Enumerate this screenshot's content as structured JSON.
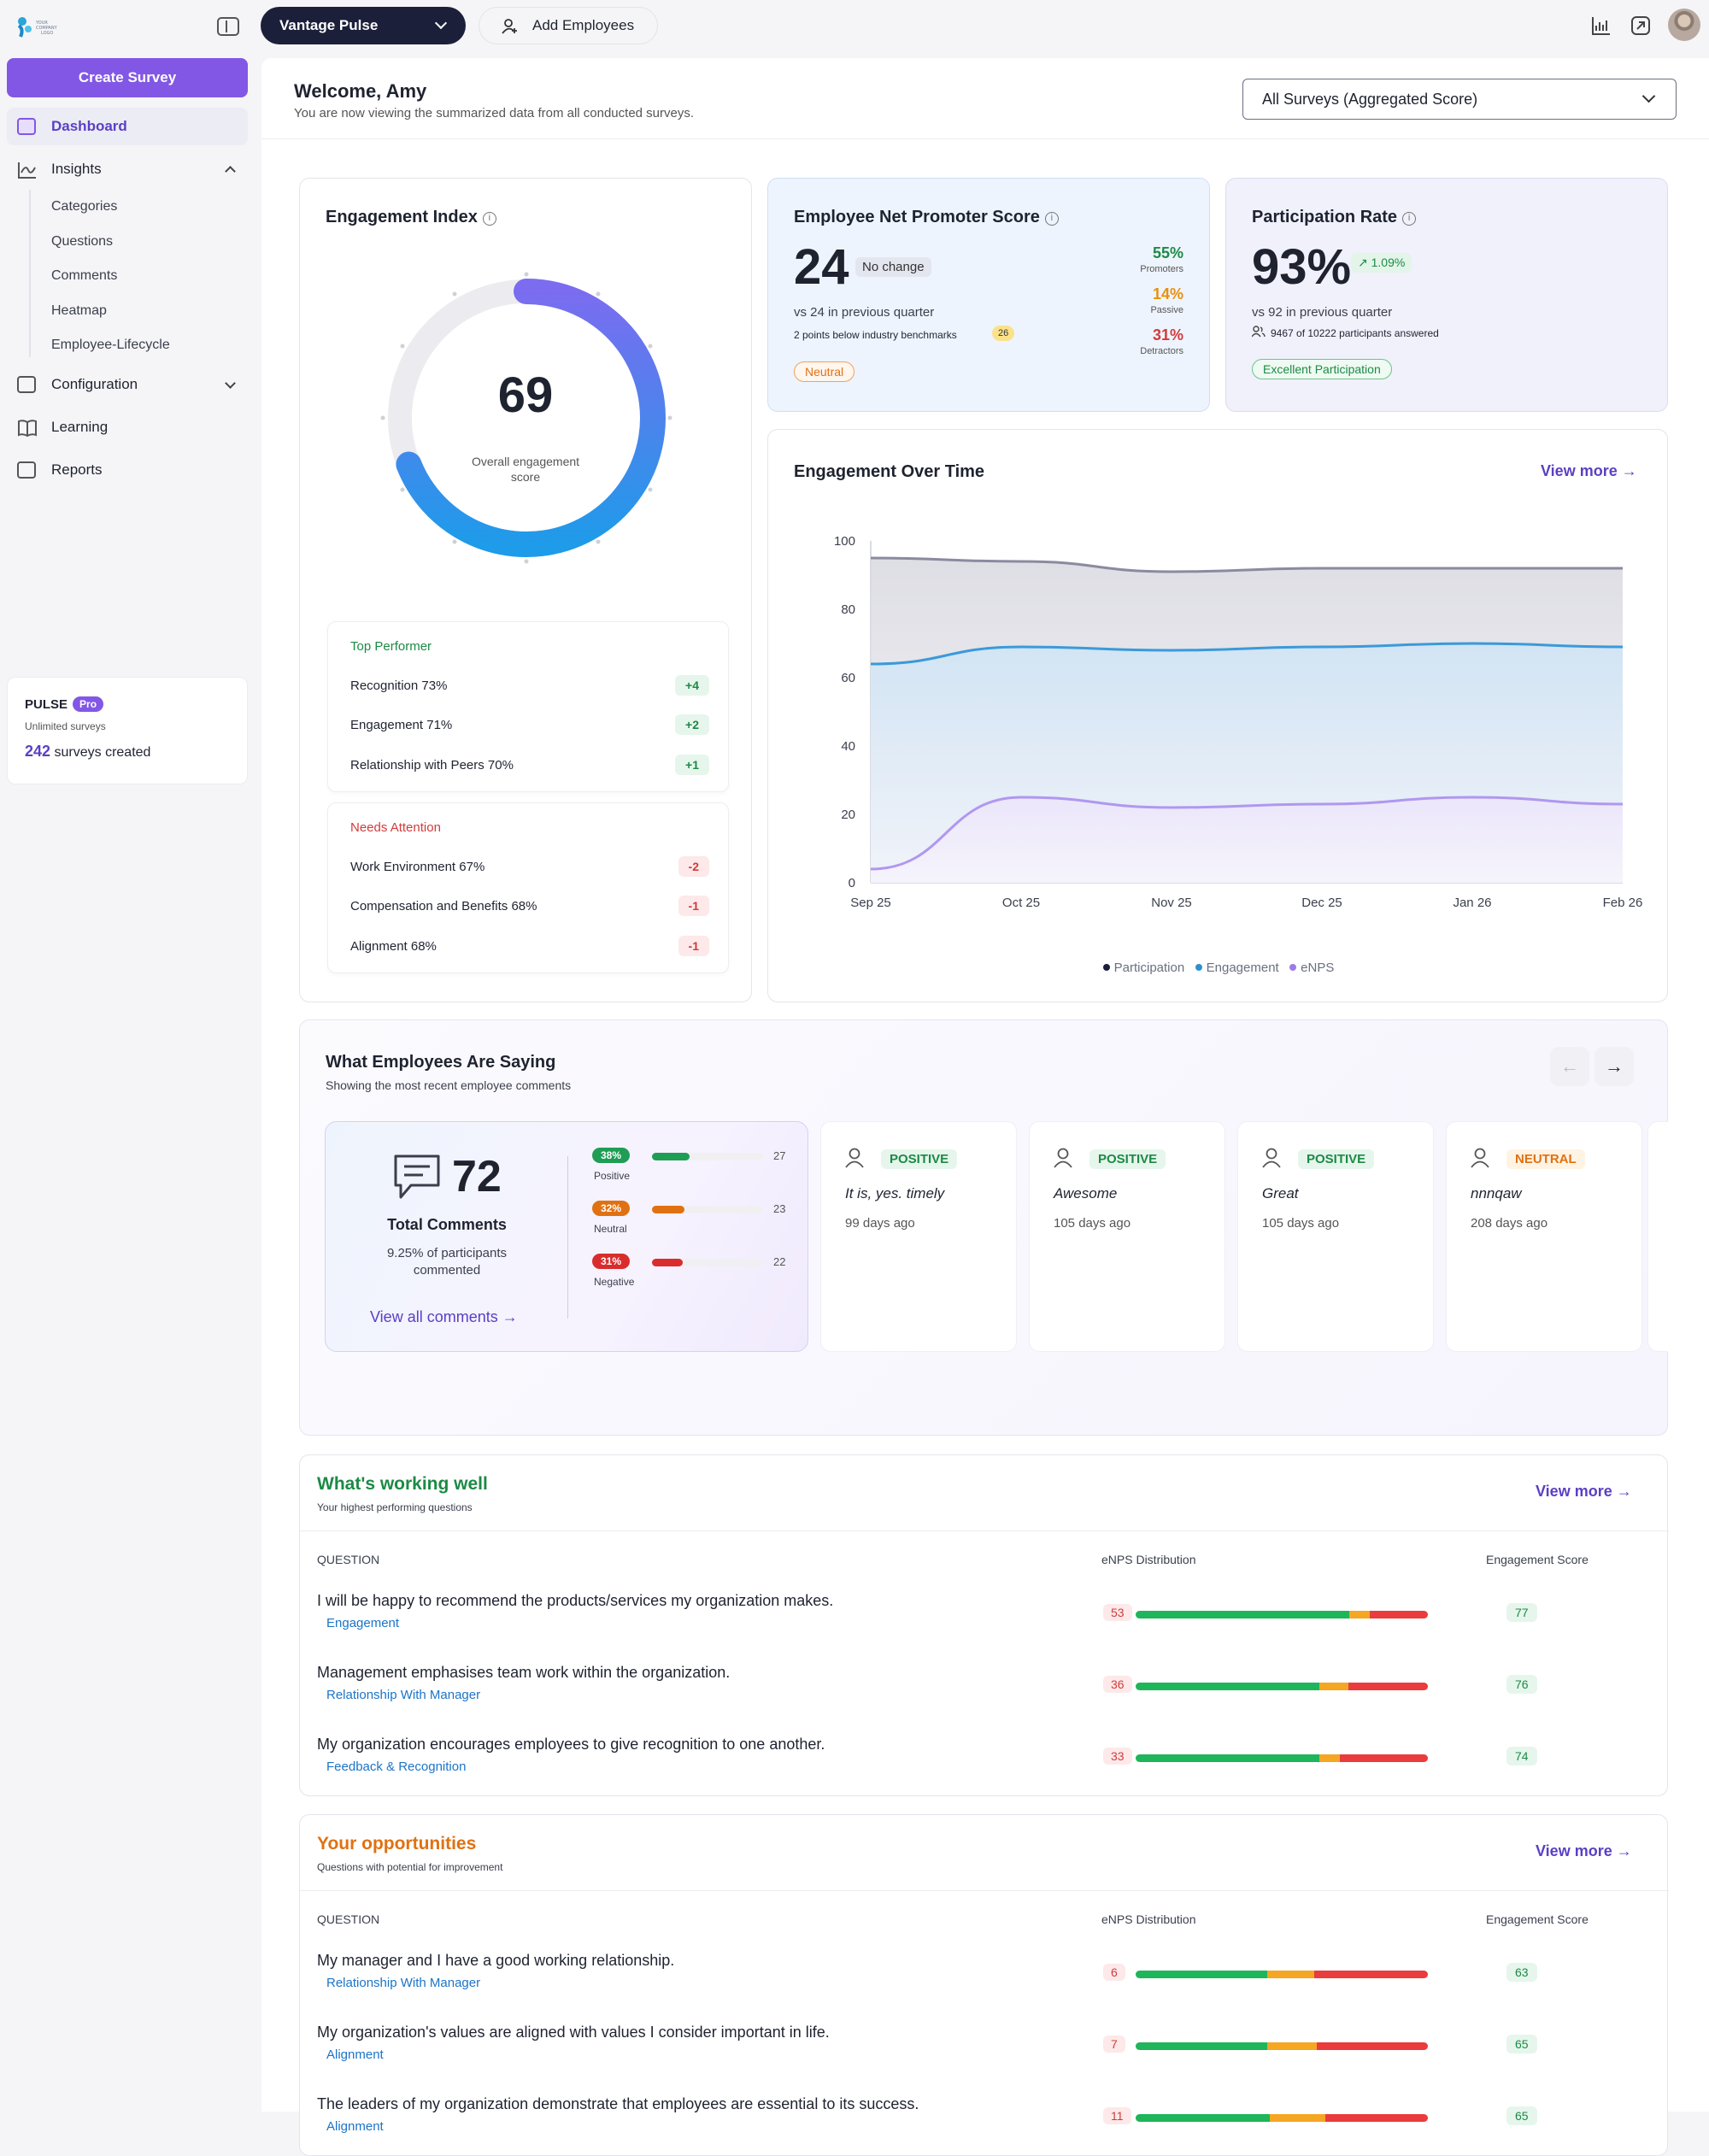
{
  "app": {
    "logo_text": "YOUR COMPANY LOGO",
    "create_survey": "Create Survey",
    "nav": {
      "dashboard": "Dashboard",
      "insights": "Insights",
      "insights_sub": [
        "Categories",
        "Questions",
        "Comments",
        "Heatmap",
        "Employee-Lifecycle"
      ],
      "configuration": "Configuration",
      "learning": "Learning",
      "reports": "Reports"
    },
    "pulse": {
      "name": "PULSE",
      "badge": "Pro",
      "plan": "Unlimited surveys",
      "count": "242",
      "count_label": "surveys created"
    }
  },
  "topbar": {
    "survey": "Vantage Pulse",
    "add_employees": "Add Employees"
  },
  "header": {
    "welcome": "Welcome, Amy",
    "subtitle": "You are now viewing the summarized data from all conducted surveys.",
    "survey_filter": "All Surveys (Aggregated Score)"
  },
  "engagement_index": {
    "title": "Engagement Index",
    "score": "69",
    "score_value": 69,
    "caption_1": "Overall engagement",
    "caption_2": "score",
    "top_performer": {
      "heading": "Top Performer",
      "items": [
        {
          "label": "Recognition  73%",
          "delta": "+4"
        },
        {
          "label": "Engagement  71%",
          "delta": "+2"
        },
        {
          "label": "Relationship with Peers  70%",
          "delta": "+1"
        }
      ]
    },
    "needs_attention": {
      "heading": "Needs Attention",
      "items": [
        {
          "label": "Work Environment  67%",
          "delta": "-2"
        },
        {
          "label": "Compensation and Benefits  68%",
          "delta": "-1"
        },
        {
          "label": "Alignment  68%",
          "delta": "-1"
        }
      ]
    }
  },
  "enps": {
    "title": "Employee Net Promoter Score",
    "score": "24",
    "change": "No change",
    "previous": "vs 24 in previous quarter",
    "benchmark": "2 points below industry benchmarks",
    "benchmark_value": "26",
    "status": "Neutral",
    "promoters_pct": "55%",
    "promoters_label": "Promoters",
    "passive_pct": "14%",
    "passive_label": "Passive",
    "detractors_pct": "31%",
    "detractors_label": "Detractors"
  },
  "participation": {
    "title": "Participation Rate",
    "rate": "93%",
    "change": "1.09%",
    "previous": "vs 92 in previous quarter",
    "answered": "9467 of 10222 participants answered",
    "status": "Excellent Participation"
  },
  "engagement_over_time": {
    "title": "Engagement Over Time",
    "view_more": "View more"
  },
  "chart_data": {
    "type": "area",
    "x": [
      "Sep 25",
      "Oct 25",
      "Nov 25",
      "Dec 25",
      "Jan 26",
      "Feb 26"
    ],
    "ylim": [
      0,
      100
    ],
    "yticks": [
      0,
      20,
      40,
      60,
      80,
      100
    ],
    "grid": false,
    "legend_position": "bottom",
    "series": [
      {
        "name": "Participation",
        "color": "#8a8aa0",
        "values": [
          95,
          94,
          91,
          92,
          92,
          92
        ]
      },
      {
        "name": "Engagement",
        "color": "#3a9ad9",
        "values": [
          64,
          69,
          68,
          69,
          70,
          69
        ]
      },
      {
        "name": "eNPS",
        "color": "#b197f0",
        "values": [
          4,
          25,
          22,
          23,
          25,
          23
        ]
      }
    ]
  },
  "comments": {
    "title": "What Employees Are Saying",
    "subtitle": "Showing the most recent employee comments",
    "total": "72",
    "total_label": "Total Comments",
    "participants_1": "9.25% of participants",
    "participants_2": "commented",
    "view_all": "View all comments",
    "distribution": [
      {
        "pct": "38%",
        "label": "Positive",
        "count": "27",
        "fraction": 0.38,
        "color": "#1f9d55"
      },
      {
        "pct": "32%",
        "label": "Neutral",
        "count": "23",
        "fraction": 0.32,
        "color": "#e07112"
      },
      {
        "pct": "31%",
        "label": "Negative",
        "count": "22",
        "fraction": 0.31,
        "color": "#d92d2d"
      }
    ],
    "cards": [
      {
        "sentiment": "POSITIVE",
        "text": "It is, yes. timely",
        "time": "99 days ago"
      },
      {
        "sentiment": "POSITIVE",
        "text": "Awesome",
        "time": "105 days ago"
      },
      {
        "sentiment": "POSITIVE",
        "text": "Great",
        "time": "105 days ago"
      },
      {
        "sentiment": "NEUTRAL",
        "text": "nnnqaw",
        "time": "208 days ago"
      }
    ]
  },
  "working_well": {
    "title": "What's working well",
    "subtitle": "Your highest performing questions",
    "view_more": "View more",
    "col_question": "QUESTION",
    "col_enps": "eNPS Distribution",
    "col_score": "Engagement Score",
    "rows": [
      {
        "question": "I will be happy to recommend the products/services my organization makes.",
        "category": "Engagement",
        "enps": "53",
        "dist": [
          0.73,
          0.07,
          0.2
        ],
        "score": "77"
      },
      {
        "question": "Management emphasises team work within the organization.",
        "category": "Relationship With Manager",
        "enps": "36",
        "dist": [
          0.63,
          0.1,
          0.27
        ],
        "score": "76"
      },
      {
        "question": "My organization encourages employees to give recognition to one another.",
        "category": "Feedback & Recognition",
        "enps": "33",
        "dist": [
          0.63,
          0.07,
          0.3
        ],
        "score": "74"
      }
    ]
  },
  "opportunities": {
    "title": "Your opportunities",
    "subtitle": "Questions with potential for improvement",
    "view_more": "View more",
    "col_question": "QUESTION",
    "col_enps": "eNPS Distribution",
    "col_score": "Engagement Score",
    "rows": [
      {
        "question": "My manager and I have a good working relationship.",
        "category": "Relationship With Manager",
        "enps": "6",
        "dist": [
          0.45,
          0.16,
          0.39
        ],
        "score": "63"
      },
      {
        "question": "My organization's values are aligned with values I consider important in life.",
        "category": "Alignment",
        "enps": "7",
        "dist": [
          0.45,
          0.17,
          0.38
        ],
        "score": "65"
      },
      {
        "question": "The leaders of my organization demonstrate that employees are essential to its success.",
        "category": "Alignment",
        "enps": "11",
        "dist": [
          0.46,
          0.19,
          0.35
        ],
        "score": "65"
      }
    ]
  }
}
